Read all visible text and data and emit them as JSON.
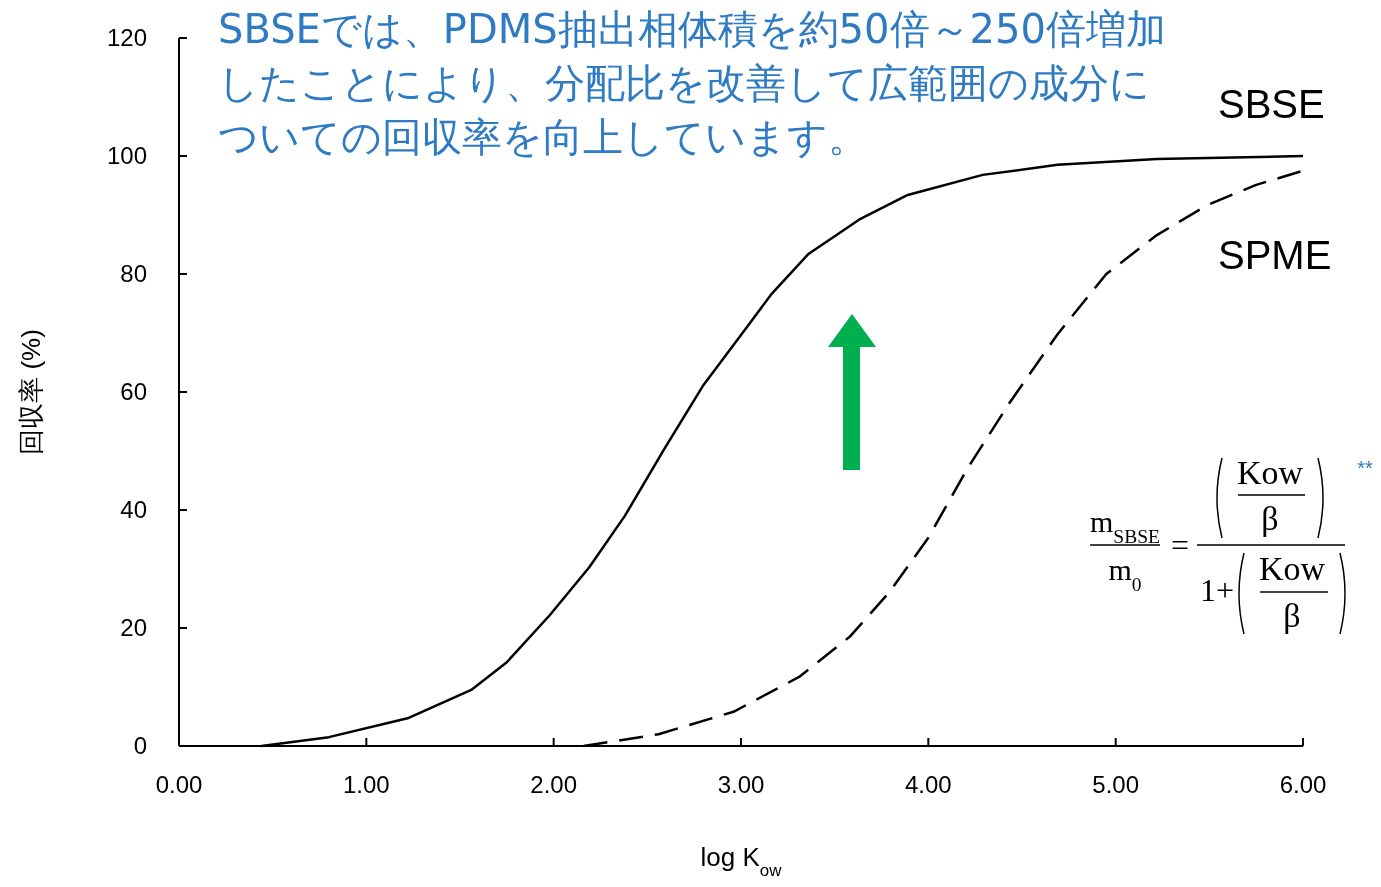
{
  "chart_data": {
    "type": "line",
    "title": "SBSEでは、PDMS抽出相体積を約50倍～250倍増加したことにより、分配比を改善して広範囲の成分についての回収率を向上しています。",
    "xlabel": "log K$_{ow}$",
    "ylabel": "回収率 (%)",
    "xlim": [
      0,
      6
    ],
    "ylim": [
      0,
      120
    ],
    "xticks": [
      {
        "value": 0,
        "label": "0.00"
      },
      {
        "value": 1,
        "label": "1.00"
      },
      {
        "value": 2,
        "label": "2.00"
      },
      {
        "value": 3,
        "label": "3.00"
      },
      {
        "value": 4,
        "label": "4.00"
      },
      {
        "value": 5,
        "label": "5.00"
      },
      {
        "value": 6,
        "label": "6.00"
      }
    ],
    "yticks": [
      0,
      20,
      40,
      60,
      80,
      100,
      120
    ],
    "grid": false,
    "legend": false,
    "series": [
      {
        "name": "SBSE",
        "color": "#000000",
        "line_style": "solid",
        "x": [
          0.44,
          0.8,
          1.22,
          1.56,
          1.75,
          1.98,
          2.19,
          2.38,
          2.59,
          2.8,
          3.02,
          3.16,
          3.36,
          3.63,
          3.89,
          4.29,
          4.69,
          5.22,
          6.0
        ],
        "values": [
          0,
          1.5,
          4.7,
          9.5,
          14.2,
          22.2,
          30.3,
          39,
          50.3,
          61.2,
          70.5,
          76.5,
          83.4,
          89.2,
          93.4,
          96.8,
          98.5,
          99.5,
          100
        ]
      },
      {
        "name": "SPME",
        "color": "#000000",
        "line_style": "dashed",
        "x": [
          2.16,
          2.56,
          2.96,
          3.31,
          3.58,
          3.79,
          4.0,
          4.21,
          4.43,
          4.69,
          4.95,
          5.22,
          5.49,
          5.75,
          6.0
        ],
        "values": [
          0,
          2.0,
          5.8,
          11.7,
          18.5,
          26,
          35.3,
          47.1,
          58,
          69.8,
          80,
          86.6,
          91.7,
          95.1,
          97.5
        ]
      }
    ],
    "annotations": [
      "m$_{SBSE}$",
      "m$_{0}$",
      "=",
      "Kow",
      "β",
      "1+",
      "Kow",
      "β",
      "**"
    ]
  }
}
